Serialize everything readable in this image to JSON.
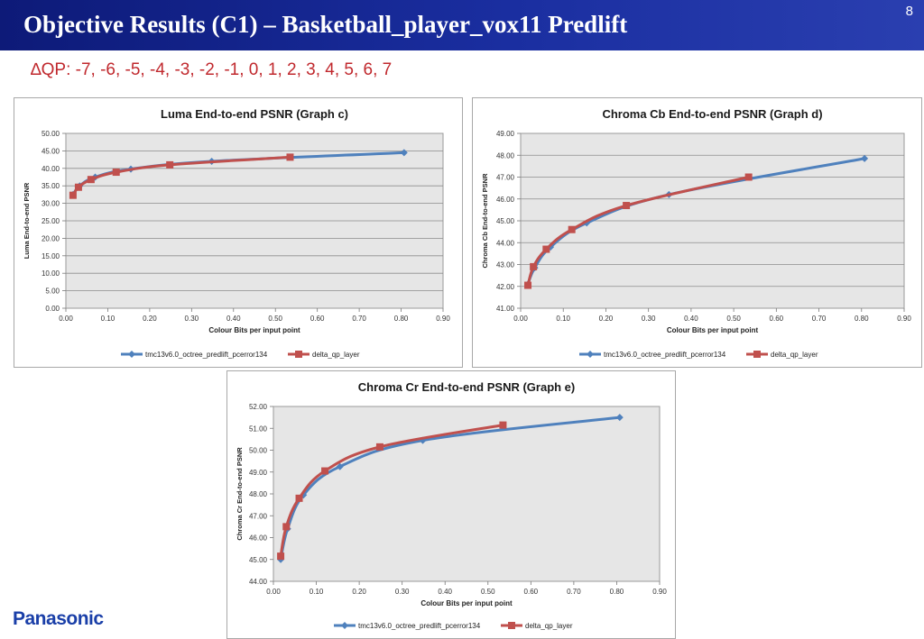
{
  "slide": {
    "title": "Objective Results (C1) – Basketball_player_vox11 Predlift",
    "page_number": "8",
    "qp_line": "∆QP: -7, -6, -5, -4, -3, -2, -1, 0, 1, 2, 3, 4, 5, 6, 7",
    "logo": "Panasonic"
  },
  "colors": {
    "series1": "#4f81bd",
    "series2": "#c0504d",
    "plot_bg": "#e6e6e6",
    "header": "#1a2ea0",
    "qp_text": "#c0282d",
    "logo": "#1a3fa8"
  },
  "chart_data": [
    {
      "type": "line",
      "title": "Luma End-to-end PSNR (Graph c)",
      "xlabel": "Colour  Bits per input point",
      "ylabel": "Luma End-to-end PSNR",
      "xlim": [
        0,
        0.9
      ],
      "ylim": [
        0,
        50
      ],
      "xticks": [
        "0.00",
        "0.10",
        "0.20",
        "0.30",
        "0.40",
        "0.50",
        "0.60",
        "0.70",
        "0.80",
        "0.90"
      ],
      "yticks": [
        "0.00",
        "5.00",
        "10.00",
        "15.00",
        "20.00",
        "25.00",
        "30.00",
        "35.00",
        "40.00",
        "45.00",
        "50.00"
      ],
      "grid": true,
      "legend": "bottom",
      "series": [
        {
          "name": "tmc13v6.0_octree_predlift_pcerror134",
          "marker": "diamond",
          "x": [
            0.017,
            0.033,
            0.07,
            0.155,
            0.348,
            0.807
          ],
          "y": [
            32.5,
            35.0,
            37.5,
            39.8,
            42.0,
            44.5
          ]
        },
        {
          "name": "delta_qp_layer",
          "marker": "square",
          "x": [
            0.017,
            0.03,
            0.06,
            0.12,
            0.248,
            0.535
          ],
          "y": [
            32.3,
            34.6,
            36.8,
            38.9,
            41.0,
            43.2
          ]
        }
      ]
    },
    {
      "type": "line",
      "title": "Chroma Cb End-to-end PSNR (Graph d)",
      "xlabel": "Colour  Bits per input point",
      "ylabel": "Chroma Cb End-to-end PSNR",
      "xlim": [
        0,
        0.9
      ],
      "ylim": [
        41,
        49
      ],
      "xticks": [
        "0.00",
        "0.10",
        "0.20",
        "0.30",
        "0.40",
        "0.50",
        "0.60",
        "0.70",
        "0.80",
        "0.90"
      ],
      "yticks": [
        "41.00",
        "42.00",
        "43.00",
        "44.00",
        "45.00",
        "46.00",
        "47.00",
        "48.00",
        "49.00"
      ],
      "grid": true,
      "legend": "bottom",
      "series": [
        {
          "name": "tmc13v6.0_octree_predlift_pcerror134",
          "marker": "diamond",
          "x": [
            0.017,
            0.033,
            0.07,
            0.155,
            0.348,
            0.807
          ],
          "y": [
            42.1,
            42.85,
            43.8,
            44.9,
            46.2,
            47.85
          ]
        },
        {
          "name": "delta_qp_layer",
          "marker": "square",
          "x": [
            0.017,
            0.03,
            0.06,
            0.12,
            0.248,
            0.535
          ],
          "y": [
            42.05,
            42.9,
            43.7,
            44.6,
            45.7,
            47.0
          ]
        }
      ]
    },
    {
      "type": "line",
      "title": "Chroma Cr End-to-end PSNR (Graph e)",
      "xlabel": "Colour  Bits per input point",
      "ylabel": "Chroma Cr End-to-end PSNR",
      "xlim": [
        0,
        0.9
      ],
      "ylim": [
        44,
        52
      ],
      "xticks": [
        "0.00",
        "0.10",
        "0.20",
        "0.30",
        "0.40",
        "0.50",
        "0.60",
        "0.70",
        "0.80",
        "0.90"
      ],
      "yticks": [
        "44.00",
        "45.00",
        "46.00",
        "47.00",
        "48.00",
        "49.00",
        "50.00",
        "51.00",
        "52.00"
      ],
      "grid": false,
      "legend": "bottom",
      "series": [
        {
          "name": "tmc13v6.0_octree_predlift_pcerror134",
          "marker": "diamond",
          "x": [
            0.017,
            0.033,
            0.07,
            0.155,
            0.348,
            0.807
          ],
          "y": [
            45.0,
            46.4,
            47.95,
            49.25,
            50.45,
            51.5
          ]
        },
        {
          "name": "delta_qp_layer",
          "marker": "square",
          "x": [
            0.017,
            0.03,
            0.06,
            0.12,
            0.248,
            0.535
          ],
          "y": [
            45.15,
            46.5,
            47.8,
            49.05,
            50.15,
            51.15
          ]
        }
      ]
    }
  ]
}
